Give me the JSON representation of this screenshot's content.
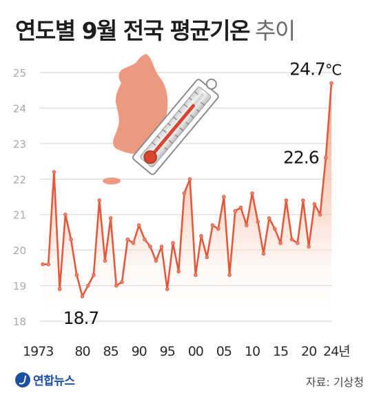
{
  "title": {
    "main": "연도별 9월 전국 평균기온",
    "suffix": "추이"
  },
  "chart_data": {
    "type": "area",
    "title": "연도별 9월 전국 평균기온 추이",
    "xlabel": "",
    "ylabel": "",
    "x": [
      1973,
      1974,
      1975,
      1976,
      1977,
      1978,
      1979,
      1980,
      1981,
      1982,
      1983,
      1984,
      1985,
      1986,
      1987,
      1988,
      1989,
      1990,
      1991,
      1992,
      1993,
      1994,
      1995,
      1996,
      1997,
      1998,
      1999,
      2000,
      2001,
      2002,
      2003,
      2004,
      2005,
      2006,
      2007,
      2008,
      2009,
      2010,
      2011,
      2012,
      2013,
      2014,
      2015,
      2016,
      2017,
      2018,
      2019,
      2020,
      2021,
      2022,
      2023,
      2024
    ],
    "series": [
      {
        "values": [
          19.6,
          19.6,
          22.2,
          18.9,
          21.0,
          20.3,
          19.3,
          18.7,
          19.0,
          19.3,
          21.4,
          19.7,
          20.9,
          19.0,
          19.1,
          20.3,
          20.2,
          20.7,
          20.3,
          20.1,
          19.7,
          20.1,
          18.9,
          20.2,
          19.4,
          21.6,
          22.0,
          19.3,
          20.4,
          19.8,
          20.7,
          20.6,
          21.5,
          19.3,
          21.1,
          21.2,
          20.7,
          21.6,
          20.8,
          19.9,
          20.9,
          20.6,
          20.2,
          21.4,
          20.3,
          20.2,
          21.4,
          20.1,
          21.3,
          21.0,
          22.6,
          24.7
        ]
      }
    ],
    "ylim": [
      18,
      25
    ],
    "y_ticks": [
      18,
      19,
      20,
      21,
      22,
      23,
      24,
      25
    ],
    "x_ticks": [
      {
        "value": 1973,
        "label": "1973"
      },
      {
        "value": 1980,
        "label": "80"
      },
      {
        "value": 1985,
        "label": "85"
      },
      {
        "value": 1990,
        "label": "90"
      },
      {
        "value": 1995,
        "label": "95"
      },
      {
        "value": 2000,
        "label": "00"
      },
      {
        "value": 2005,
        "label": "05"
      },
      {
        "value": 2010,
        "label": "10"
      },
      {
        "value": 2015,
        "label": "15"
      },
      {
        "value": 2020,
        "label": "20"
      },
      {
        "value": 2024,
        "label": "24년"
      }
    ],
    "annotations": [
      {
        "x": 1980,
        "y": 18.7,
        "text": "18.7",
        "name": "label-min-1980"
      },
      {
        "x": 2023,
        "y": 22.6,
        "text": "22.6",
        "name": "label-2023"
      },
      {
        "x": 2024,
        "y": 24.7,
        "text": "24.7",
        "unit": "°C",
        "name": "label-max-2024"
      }
    ],
    "grid": true,
    "colors": {
      "line": "#e3573a",
      "marker": "#e8826a",
      "area_top": "#f19a7c",
      "grid": "#d0d0d0",
      "map": "#ec9980"
    }
  },
  "footer": {
    "logo_text": "연합뉴스",
    "source": "자료: 기상청"
  }
}
